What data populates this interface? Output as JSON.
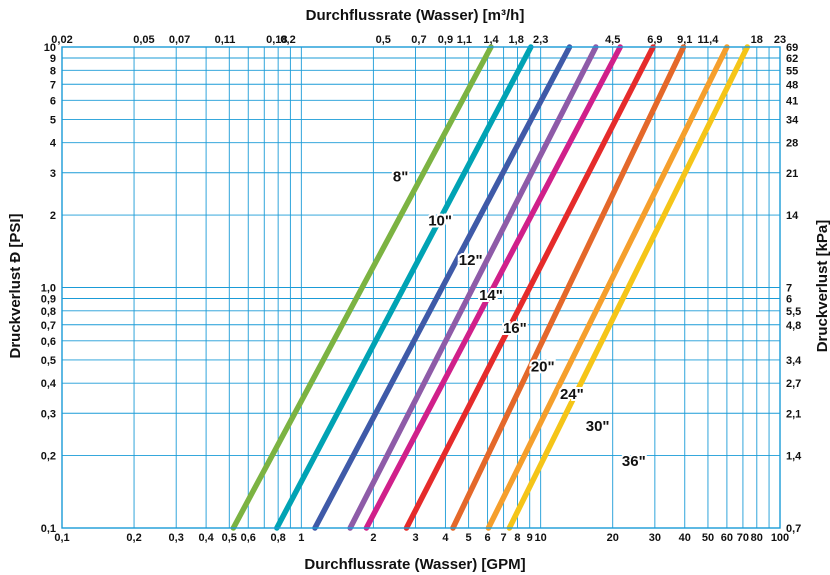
{
  "chart_data": {
    "type": "line",
    "x_scale": "log",
    "y_scale": "log",
    "grid": true,
    "xlim": [
      0.1,
      100
    ],
    "ylim": [
      0.1,
      10
    ],
    "x_label_bottom": "Durchflussrate (Wasser) [GPM]",
    "x_label_top": "Durchflussrate (Wasser) [m³/h]",
    "y_label_left": "Druckverlust Ð [PSI]",
    "y_label_right": "Druckverlust [kPa]",
    "x_ticks": [
      {
        "v": 0.1,
        "label": "0,1"
      },
      {
        "v": 0.2,
        "label": "0,2"
      },
      {
        "v": 0.3,
        "label": "0,3"
      },
      {
        "v": 0.4,
        "label": "0,4"
      },
      {
        "v": 0.5,
        "label": "0,5"
      },
      {
        "v": 0.6,
        "label": "0,6"
      },
      {
        "v": 0.8,
        "label": "0,8"
      },
      {
        "v": 1,
        "label": "1"
      },
      {
        "v": 2,
        "label": "2"
      },
      {
        "v": 3,
        "label": "3"
      },
      {
        "v": 4,
        "label": "4"
      },
      {
        "v": 5,
        "label": "5"
      },
      {
        "v": 6,
        "label": "6"
      },
      {
        "v": 7,
        "label": "7"
      },
      {
        "v": 8,
        "label": "8"
      },
      {
        "v": 9,
        "label": "9"
      },
      {
        "v": 10,
        "label": "10"
      },
      {
        "v": 20,
        "label": "20"
      },
      {
        "v": 30,
        "label": "30"
      },
      {
        "v": 40,
        "label": "40"
      },
      {
        "v": 50,
        "label": "50"
      },
      {
        "v": 60,
        "label": "60"
      },
      {
        "v": 70,
        "label": "70"
      },
      {
        "v": 80,
        "label": "80"
      },
      {
        "v": 100,
        "label": "100"
      }
    ],
    "x_ticks_top": [
      {
        "v": 0.1,
        "label": "0,02"
      },
      {
        "v": 0.22,
        "label": "0,05"
      },
      {
        "v": 0.31,
        "label": "0,07"
      },
      {
        "v": 0.48,
        "label": "0,11"
      },
      {
        "v": 0.79,
        "label": "0,18"
      },
      {
        "v": 0.88,
        "label": "0,2"
      },
      {
        "v": 2.2,
        "label": "0,5"
      },
      {
        "v": 3.1,
        "label": "0,7"
      },
      {
        "v": 4,
        "label": "0,9"
      },
      {
        "v": 4.8,
        "label": "1,1"
      },
      {
        "v": 6.2,
        "label": "1,4"
      },
      {
        "v": 7.9,
        "label": "1,8"
      },
      {
        "v": 10,
        "label": "2,3"
      },
      {
        "v": 20,
        "label": "4,5"
      },
      {
        "v": 30,
        "label": "6,9"
      },
      {
        "v": 40,
        "label": "9,1"
      },
      {
        "v": 50,
        "label": "11,4"
      },
      {
        "v": 80,
        "label": "18"
      },
      {
        "v": 100,
        "label": "23"
      }
    ],
    "y_ticks": [
      {
        "v": 0.1,
        "label": "0,1"
      },
      {
        "v": 0.2,
        "label": "0,2"
      },
      {
        "v": 0.3,
        "label": "0,3"
      },
      {
        "v": 0.4,
        "label": "0,4"
      },
      {
        "v": 0.5,
        "label": "0,5"
      },
      {
        "v": 0.6,
        "label": "0,6"
      },
      {
        "v": 0.7,
        "label": "0,7"
      },
      {
        "v": 0.8,
        "label": "0,8"
      },
      {
        "v": 0.9,
        "label": "0,9"
      },
      {
        "v": 1,
        "label": "1,0"
      },
      {
        "v": 2,
        "label": "2"
      },
      {
        "v": 3,
        "label": "3"
      },
      {
        "v": 4,
        "label": "4"
      },
      {
        "v": 5,
        "label": "5"
      },
      {
        "v": 6,
        "label": "6"
      },
      {
        "v": 7,
        "label": "7"
      },
      {
        "v": 8,
        "label": "8"
      },
      {
        "v": 9,
        "label": "9"
      },
      {
        "v": 10,
        "label": "10"
      }
    ],
    "y_ticks_right": [
      {
        "v": 0.1,
        "label": "0,7"
      },
      {
        "v": 0.2,
        "label": "1,4"
      },
      {
        "v": 0.3,
        "label": "2,1"
      },
      {
        "v": 0.4,
        "label": "2,7"
      },
      {
        "v": 0.5,
        "label": "3,4"
      },
      {
        "v": 0.7,
        "label": "4,8"
      },
      {
        "v": 0.8,
        "label": "5,5"
      },
      {
        "v": 0.9,
        "label": "6"
      },
      {
        "v": 1,
        "label": "7"
      },
      {
        "v": 2,
        "label": "14"
      },
      {
        "v": 3,
        "label": "21"
      },
      {
        "v": 4,
        "label": "28"
      },
      {
        "v": 5,
        "label": "34"
      },
      {
        "v": 6,
        "label": "41"
      },
      {
        "v": 7,
        "label": "48"
      },
      {
        "v": 8,
        "label": "55"
      },
      {
        "v": 9,
        "label": "62"
      },
      {
        "v": 10,
        "label": "69"
      }
    ],
    "series": [
      {
        "name": "8\"",
        "color": "#7cb342",
        "points": [
          [
            0.52,
            0.1
          ],
          [
            6.2,
            10
          ]
        ],
        "label_at": [
          2.6,
          2.9
        ]
      },
      {
        "name": "10\"",
        "color": "#00a3b4",
        "points": [
          [
            0.79,
            0.1
          ],
          [
            9.1,
            10
          ]
        ],
        "label_at": [
          3.8,
          1.9
        ]
      },
      {
        "name": "12\"",
        "color": "#3f5aa8",
        "points": [
          [
            1.14,
            0.1
          ],
          [
            13.2,
            10
          ]
        ],
        "label_at": [
          5.1,
          1.3
        ]
      },
      {
        "name": "14\"",
        "color": "#8e5ba8",
        "points": [
          [
            1.6,
            0.1
          ],
          [
            17.0,
            10
          ]
        ],
        "label_at": [
          6.2,
          0.93
        ]
      },
      {
        "name": "16\"",
        "color": "#d0208a",
        "points": [
          [
            1.87,
            0.1
          ],
          [
            21.5,
            10
          ]
        ],
        "label_at": [
          7.8,
          0.68
        ]
      },
      {
        "name": "20\"",
        "color": "#e52b2b",
        "points": [
          [
            2.75,
            0.1
          ],
          [
            29.5,
            10
          ]
        ],
        "label_at": [
          10.2,
          0.47
        ]
      },
      {
        "name": "24\"",
        "color": "#e4682a",
        "points": [
          [
            4.3,
            0.1
          ],
          [
            39.5,
            10
          ]
        ],
        "label_at": [
          13.5,
          0.36
        ]
      },
      {
        "name": "30\"",
        "color": "#f59f2c",
        "points": [
          [
            6.05,
            0.1
          ],
          [
            60,
            10
          ]
        ],
        "label_at": [
          17.3,
          0.265
        ]
      },
      {
        "name": "36\"",
        "color": "#f5c518",
        "points": [
          [
            7.4,
            0.1
          ],
          [
            73,
            10
          ]
        ],
        "label_at": [
          24.5,
          0.19
        ]
      }
    ]
  }
}
